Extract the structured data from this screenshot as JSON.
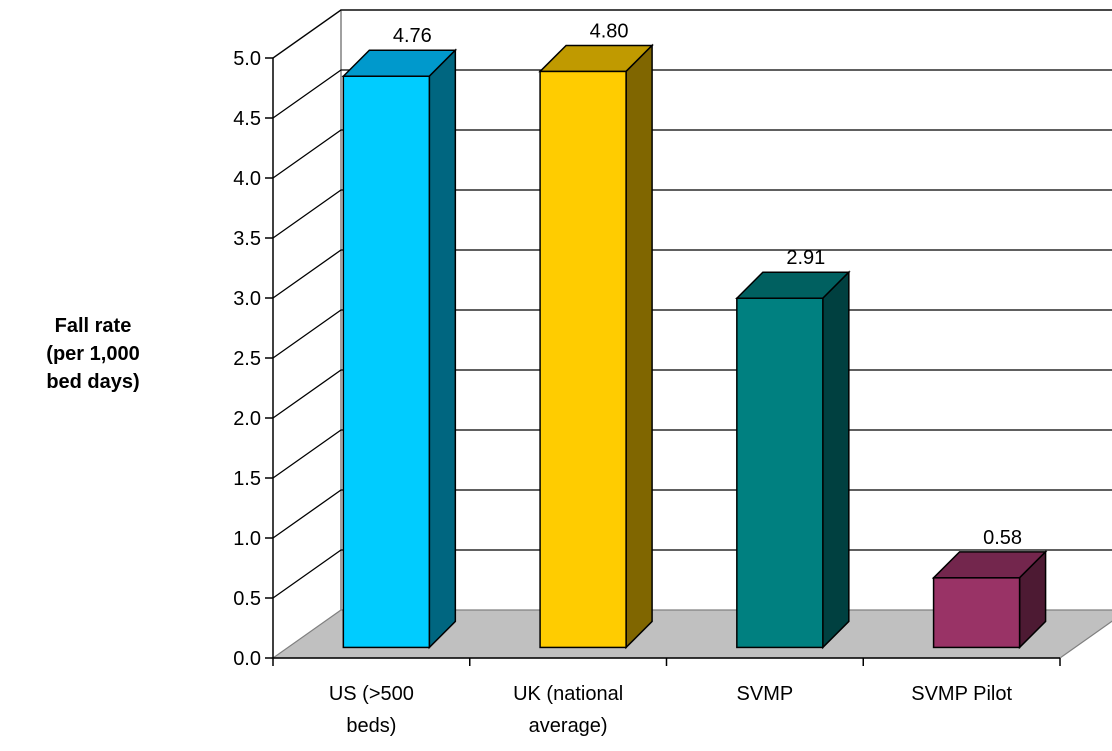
{
  "chart_data": {
    "type": "bar",
    "title": "",
    "ylabel_lines": [
      "Fall rate",
      "(per 1,000",
      "bed days)"
    ],
    "xlabel": "",
    "categories": [
      [
        "US (>500",
        "beds)"
      ],
      [
        "UK (national",
        "average)"
      ],
      [
        "SVMP"
      ],
      [
        "SVMP Pilot"
      ]
    ],
    "values": [
      4.76,
      4.8,
      2.91,
      0.58
    ],
    "data_labels": [
      "4.76",
      "4.80",
      "2.91",
      "0.58"
    ],
    "ylim": [
      0,
      5.0
    ],
    "y_ticks": [
      "0.0",
      "0.5",
      "1.0",
      "1.5",
      "2.0",
      "2.5",
      "3.0",
      "3.5",
      "4.0",
      "4.5",
      "5.0"
    ],
    "grid": true,
    "style": "3d",
    "colors": [
      {
        "front": "#00CCFF",
        "top": "#0099CC",
        "side": "#006680"
      },
      {
        "front": "#FFCC00",
        "top": "#C09A00",
        "side": "#806600"
      },
      {
        "front": "#008080",
        "top": "#006060",
        "side": "#004040"
      },
      {
        "front": "#993366",
        "top": "#73264D",
        "side": "#4D1A33"
      }
    ],
    "floor_color": "#C0C0C0"
  }
}
